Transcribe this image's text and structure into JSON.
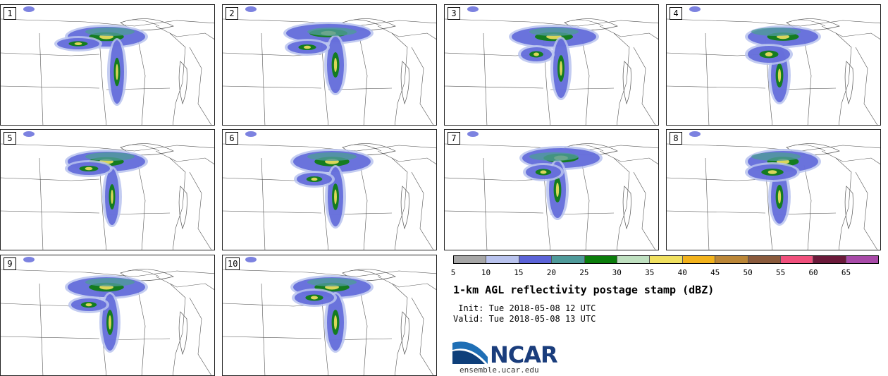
{
  "panels": [
    {
      "number": "1"
    },
    {
      "number": "2"
    },
    {
      "number": "3"
    },
    {
      "number": "4"
    },
    {
      "number": "5"
    },
    {
      "number": "6"
    },
    {
      "number": "7"
    },
    {
      "number": "8"
    },
    {
      "number": "9"
    },
    {
      "number": "10"
    }
  ],
  "colorbar": {
    "ticks": [
      "5",
      "10",
      "15",
      "20",
      "25",
      "30",
      "35",
      "40",
      "45",
      "50",
      "55",
      "60",
      "65"
    ],
    "colors": [
      "#a6a6a6",
      "#b9c3ee",
      "#5b63d8",
      "#4f9a9a",
      "#0b7d0b",
      "#bfe0c0",
      "#f0e060",
      "#f2b21c",
      "#bb8637",
      "#8a5a3c",
      "#f0507c",
      "#6b1a3a",
      "#a84aa8"
    ]
  },
  "title": "1-km AGL reflectivity postage stamp (dBZ)",
  "init_line": " Init: Tue 2018-05-08 12 UTC",
  "valid_line": "Valid: Tue 2018-05-08 13 UTC",
  "logo": {
    "name": "NCAR",
    "url": "ensemble.ucar.edu"
  }
}
